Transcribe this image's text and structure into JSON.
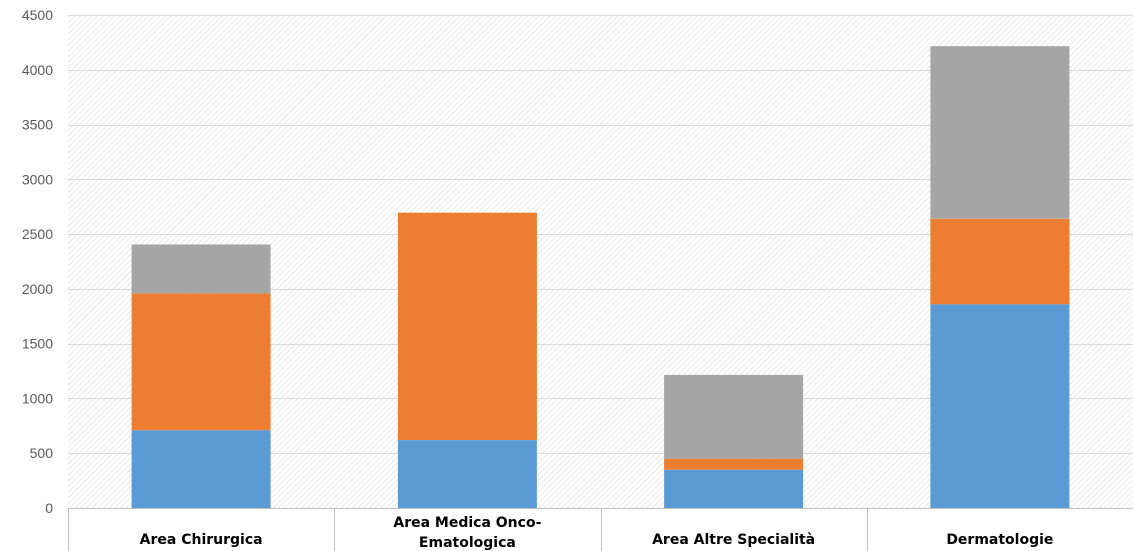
{
  "chart_data": {
    "type": "bar",
    "stacked": true,
    "categories": [
      "Area Chirurgica",
      "Area Medica Onco-Ematologica",
      "Area Altre Specialità",
      "Dermatologie"
    ],
    "category_label_lines": [
      [
        "Area Chirurgica"
      ],
      [
        "Area Medica Onco-",
        "Ematologica"
      ],
      [
        "Area Altre Specialità"
      ],
      [
        "Dermatologie"
      ]
    ],
    "series": [
      {
        "color": "#5b9bd5",
        "values": [
          710,
          620,
          350,
          1860
        ]
      },
      {
        "color": "#ed7d31",
        "values": [
          1250,
          2075,
          100,
          780
        ]
      },
      {
        "color": "#a5a5a5",
        "values": [
          445,
          0,
          765,
          1575
        ]
      }
    ],
    "yticks": [
      0,
      500,
      1000,
      1500,
      2000,
      2500,
      3000,
      3500,
      4000,
      4500
    ],
    "ylim": [
      0,
      4500
    ],
    "grid": true,
    "title": "",
    "xlabel": "",
    "ylabel": ""
  }
}
